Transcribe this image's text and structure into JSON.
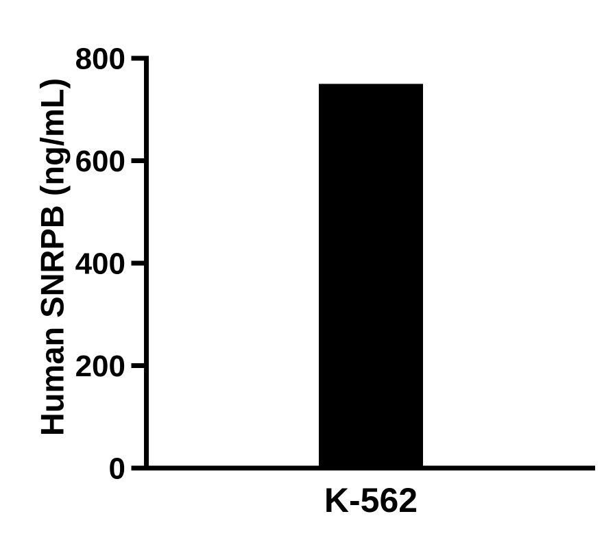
{
  "chart_data": {
    "type": "bar",
    "title": "",
    "xlabel": "",
    "ylabel": "Human SNRPB (ng/mL)",
    "categories": [
      "K-562"
    ],
    "values": [
      750
    ],
    "ylim": [
      0,
      800
    ],
    "yticks": [
      0,
      200,
      400,
      600,
      800
    ],
    "grid": false,
    "legend": false,
    "bar_color": "#000000",
    "axis_color": "#000000",
    "background_color": "#ffffff"
  }
}
